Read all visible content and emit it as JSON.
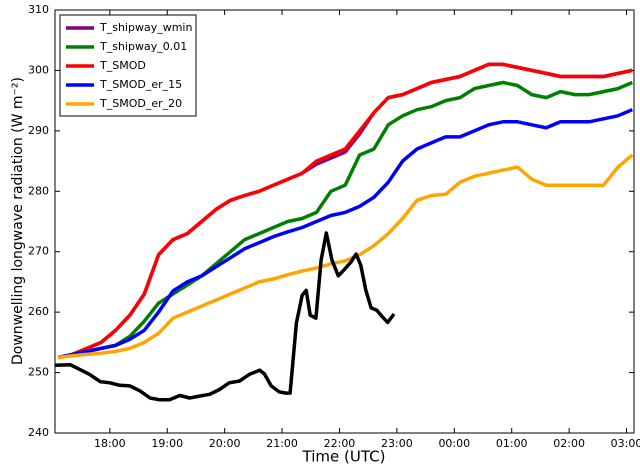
{
  "chart_data": {
    "type": "line",
    "xlabel": "Time (UTC)",
    "ylabel": "Downwelling longwave radiation (W m⁻²)",
    "x": [
      0.1,
      0.35,
      0.6,
      0.85,
      1.1,
      1.35,
      1.6,
      1.85,
      2.1,
      2.35,
      2.6,
      2.85,
      3.1,
      3.35,
      3.6,
      3.85,
      4.1,
      4.35,
      4.6,
      4.85,
      5.1,
      5.35,
      5.6,
      5.85,
      6.1,
      6.35,
      6.6,
      6.85,
      7.1,
      7.35,
      7.6,
      7.85,
      8.1,
      8.35,
      8.6,
      8.85,
      9.1,
      9.35,
      9.6,
      9.85,
      10.1
    ],
    "xlim": [
      0.045,
      10.13
    ],
    "xticks": [
      {
        "value": 1,
        "label": "18:00"
      },
      {
        "value": 2,
        "label": "19:00"
      },
      {
        "value": 3,
        "label": "20:00"
      },
      {
        "value": 4,
        "label": "21:00"
      },
      {
        "value": 5,
        "label": "22:00"
      },
      {
        "value": 6,
        "label": "23:00"
      },
      {
        "value": 7,
        "label": "00:00"
      },
      {
        "value": 8,
        "label": "01:00"
      },
      {
        "value": 9,
        "label": "02:00"
      },
      {
        "value": 10,
        "label": "03:00"
      }
    ],
    "ylim": [
      240,
      310
    ],
    "yticks": [
      240,
      250,
      260,
      270,
      280,
      290,
      300,
      310
    ],
    "legend": "upper left",
    "series": [
      {
        "name": "T_shipway_wmin",
        "color": "#800080",
        "values": [
          252.5,
          253,
          254,
          255,
          257,
          259.5,
          263,
          269.5,
          272,
          273,
          275,
          277,
          278.5,
          279.3,
          280,
          281,
          282,
          283,
          284.5,
          285.5,
          286.5,
          289.5,
          293,
          295.5,
          296,
          297,
          298,
          298.5,
          299,
          300,
          301,
          301,
          300.5,
          300,
          299.5,
          299,
          299,
          299,
          299,
          299.5,
          300
        ]
      },
      {
        "name": "T_shipway_0.01",
        "color": "#008000",
        "values": [
          252.5,
          253,
          253.5,
          254,
          254.5,
          256,
          258.5,
          261.5,
          263,
          264.5,
          266,
          268,
          270,
          272,
          273,
          274,
          275,
          275.5,
          276.5,
          280,
          281,
          286,
          287,
          291,
          292.5,
          293.5,
          294,
          295,
          295.5,
          297,
          297.5,
          298,
          297.5,
          296,
          295.5,
          296.5,
          296,
          296,
          296.5,
          297,
          298
        ]
      },
      {
        "name": "T_SMOD",
        "color": "#ff0000",
        "values": [
          252.5,
          253,
          254,
          255,
          257,
          259.5,
          263,
          269.5,
          272,
          273,
          275,
          277,
          278.5,
          279.3,
          280,
          281,
          282,
          283,
          285,
          286,
          287,
          290,
          293,
          295.5,
          296,
          297,
          298,
          298.5,
          299,
          300,
          301,
          301,
          300.5,
          300,
          299.5,
          299,
          299,
          299,
          299,
          299.5,
          300
        ]
      },
      {
        "name": "T_SMOD_er_15",
        "color": "#0000ff",
        "values": [
          252.5,
          253,
          253.5,
          254,
          254.5,
          255.5,
          257,
          260,
          263.5,
          265,
          266,
          267.5,
          269,
          270.5,
          271.5,
          272.5,
          273.3,
          274,
          275,
          276,
          276.5,
          277.5,
          279,
          281.5,
          285,
          287,
          288,
          289,
          289,
          290,
          291,
          291.5,
          291.5,
          291,
          290.5,
          291.5,
          291.5,
          291.5,
          292,
          292.5,
          293.5
        ]
      },
      {
        "name": "T_SMOD_er_20",
        "color": "#ffa500",
        "values": [
          252.5,
          252.8,
          253,
          253.2,
          253.5,
          254,
          255,
          256.5,
          259,
          260,
          261,
          262,
          263,
          264,
          265,
          265.5,
          266.2,
          266.8,
          267.3,
          268,
          268.5,
          269.5,
          271,
          273,
          275.5,
          278.5,
          279.3,
          279.5,
          281.5,
          282.5,
          283,
          283.5,
          284,
          282,
          281,
          281,
          281,
          281,
          281,
          284,
          286
        ]
      },
      {
        "color": "#000000",
        "x": [
          0.05,
          0.31,
          0.48,
          0.65,
          0.83,
          1.0,
          1.17,
          1.35,
          1.52,
          1.7,
          1.87,
          2.04,
          2.22,
          2.39,
          2.56,
          2.74,
          2.91,
          3.08,
          3.26,
          3.43,
          3.61,
          3.69,
          3.81,
          3.95,
          4.07,
          4.14,
          4.25,
          4.35,
          4.42,
          4.49,
          4.59,
          4.68,
          4.77,
          4.87,
          4.98,
          5.08,
          5.2,
          5.29,
          5.37,
          5.46,
          5.55,
          5.65,
          5.74,
          5.84,
          5.95
        ],
        "values": [
          251.2,
          251.3,
          250.5,
          249.7,
          248.5,
          248.3,
          247.9,
          247.8,
          247,
          245.8,
          245.5,
          245.5,
          246.2,
          245.8,
          246.1,
          246.4,
          247.2,
          248.3,
          248.6,
          249.7,
          250.4,
          249.8,
          247.8,
          246.8,
          246.6,
          246.6,
          258.2,
          262.8,
          263.6,
          259.5,
          259,
          268.6,
          273.1,
          268.6,
          266,
          267,
          268.3,
          269.6,
          267.8,
          263.6,
          260.7,
          260.3,
          259.3,
          258.3,
          259.7
        ]
      }
    ]
  }
}
